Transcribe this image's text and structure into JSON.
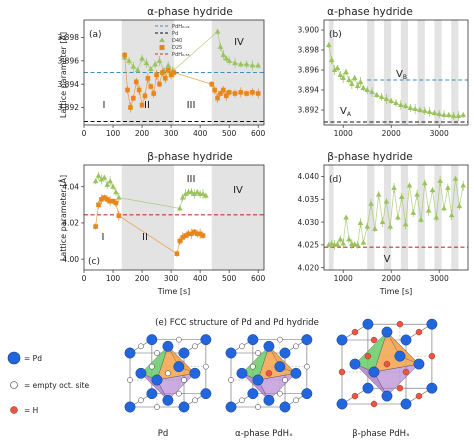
{
  "colors": {
    "pd40": "#9ac35d",
    "d25": "#e8861b",
    "pdh_ref": "#3a8fbf",
    "pd_ref": "#111111",
    "pdh_beta_ref": "#c0392b",
    "shade": "#e3e3e3",
    "pd_atom": "#2266dd",
    "h_atom": "#e85540",
    "tetra_green": "#66cc66",
    "tetra_purple": "#b07fd0",
    "tetra_orange": "#f2a24a"
  },
  "panels": {
    "a": {
      "title": "α-phase hydride",
      "label": "(a)",
      "ylabel": "Lattice parameter [Å]",
      "yticks": [
        "3.898",
        "3.896",
        "3.894",
        "3.892"
      ],
      "xticks": [
        "0",
        "100",
        "200",
        "300",
        "400",
        "500",
        "600"
      ],
      "regions": [
        "I",
        "II",
        "III",
        "IV"
      ],
      "legend": [
        "PdH₀.₀₂",
        "Pd",
        "D40",
        "D25",
        "PdH₀.₅₈"
      ]
    },
    "b": {
      "title": "α-phase hydride",
      "label": "(b)",
      "yticks": [
        "3.900",
        "3.898",
        "3.896",
        "3.894",
        "3.892"
      ],
      "xticks": [
        "1000",
        "2000",
        "3000"
      ],
      "regions": [
        "V_A",
        "V_B"
      ]
    },
    "c": {
      "title": "β-phase hydride",
      "label": "(c)",
      "ylabel": "Lattice parameter [Å]",
      "yticks": [
        "4.04",
        "4.02",
        "4.00"
      ],
      "xticks": [
        "0",
        "100",
        "200",
        "300",
        "400",
        "500",
        "600"
      ],
      "xlabel": "Time [s]",
      "regions": [
        "I",
        "II",
        "III",
        "IV"
      ]
    },
    "d": {
      "title": "β-phase hydride",
      "label": "(d)",
      "yticks": [
        "4.040",
        "4.035",
        "4.030",
        "4.025",
        "4.020"
      ],
      "xticks": [
        "1000",
        "2000",
        "3000"
      ],
      "xlabel": "Time [s]",
      "regions": [
        "V"
      ]
    }
  },
  "structure": {
    "caption": "(e)  FCC structure of Pd and Pd hydride",
    "legend": [
      "= Pd",
      "= empty oct. site",
      "= H"
    ],
    "labels": [
      "Pd",
      "α-phase PdHₓ",
      "β-phase PdHₓ"
    ]
  },
  "chart_data": [
    {
      "type": "scatter",
      "panel": "a",
      "title": "α-phase hydride",
      "ylabel": "Lattice parameter [Å]",
      "xlim": [
        0,
        620
      ],
      "ylim": [
        3.8905,
        3.8995
      ],
      "shaded_intervals": [
        [
          130,
          310
        ],
        [
          440,
          620
        ]
      ],
      "reference_lines": [
        {
          "name": "PdH₀.₀₂",
          "y": 3.895,
          "style": "dashed",
          "color": "#3a8fbf"
        },
        {
          "name": "Pd",
          "y": 3.8908,
          "style": "dashed",
          "color": "#111111"
        }
      ],
      "series": [
        {
          "name": "D40",
          "marker": "triangle",
          "color": "#9ac35d",
          "x": [
            140,
            155,
            170,
            185,
            200,
            215,
            230,
            245,
            260,
            275,
            290,
            305,
            460,
            470,
            480,
            490,
            500,
            520,
            540,
            560,
            580,
            600
          ],
          "y": [
            3.8963,
            3.896,
            3.8955,
            3.8952,
            3.8962,
            3.8958,
            3.8953,
            3.8957,
            3.896,
            3.8952,
            3.8956,
            3.8951,
            3.8985,
            3.8972,
            3.8965,
            3.8962,
            3.896,
            3.8958,
            3.8957,
            3.8957,
            3.8956,
            3.8956
          ]
        },
        {
          "name": "D25",
          "marker": "square",
          "color": "#e8861b",
          "x": [
            140,
            150,
            160,
            170,
            180,
            190,
            200,
            210,
            220,
            230,
            240,
            250,
            260,
            270,
            280,
            290,
            300,
            310,
            440,
            450,
            460,
            470,
            480,
            490,
            500,
            520,
            540,
            560,
            580,
            600
          ],
          "y": [
            3.8965,
            3.8935,
            3.892,
            3.8928,
            3.8942,
            3.8935,
            3.8922,
            3.893,
            3.8945,
            3.8938,
            3.8932,
            3.8948,
            3.894,
            3.895,
            3.8945,
            3.8952,
            3.8948,
            3.895,
            3.894,
            3.8935,
            3.8928,
            3.8932,
            3.8935,
            3.893,
            3.8933,
            3.8932,
            3.8933,
            3.8932,
            3.8933,
            3.8932
          ]
        }
      ]
    },
    {
      "type": "scatter",
      "panel": "b",
      "title": "α-phase hydride",
      "xlim": [
        600,
        3600
      ],
      "ylim": [
        3.8905,
        3.901
      ],
      "shaded_intervals": [
        [
          700,
          800
        ],
        [
          1500,
          1650
        ],
        [
          1850,
          2000
        ],
        [
          2200,
          2350
        ],
        [
          2550,
          2700
        ],
        [
          2900,
          3050
        ],
        [
          3250,
          3400
        ]
      ],
      "reference_lines": [
        {
          "y": 3.895,
          "x_from": 1500,
          "style": "dashed",
          "color": "#3a8fbf"
        },
        {
          "y": 3.8908,
          "style": "dashed",
          "color": "#111111"
        }
      ],
      "series": [
        {
          "name": "D40",
          "marker": "triangle",
          "color": "#9ac35d",
          "x": [
            700,
            760,
            820,
            880,
            940,
            1000,
            1060,
            1120,
            1180,
            1240,
            1300,
            1360,
            1420,
            1500,
            1600,
            1700,
            1800,
            1900,
            2000,
            2100,
            2200,
            2300,
            2400,
            2500,
            2600,
            2700,
            2800,
            2900,
            3000,
            3100,
            3200,
            3300,
            3400,
            3500
          ],
          "y": [
            3.8985,
            3.897,
            3.896,
            3.8962,
            3.8955,
            3.8952,
            3.8958,
            3.895,
            3.8946,
            3.8952,
            3.8944,
            3.8948,
            3.8942,
            3.894,
            3.8938,
            3.8935,
            3.8933,
            3.8931,
            3.8929,
            3.8927,
            3.8925,
            3.8924,
            3.8922,
            3.8921,
            3.892,
            3.8919,
            3.8918,
            3.8917,
            3.8916,
            3.8915,
            3.8915,
            3.8914,
            3.8914,
            3.8915
          ]
        }
      ]
    },
    {
      "type": "scatter",
      "panel": "c",
      "title": "β-phase hydride",
      "xlabel": "Time [s]",
      "ylabel": "Lattice parameter [Å]",
      "xlim": [
        0,
        620
      ],
      "ylim": [
        3.994,
        4.052
      ],
      "shaded_intervals": [
        [
          130,
          310
        ],
        [
          440,
          620
        ]
      ],
      "reference_lines": [
        {
          "name": "PdH₀.₅₈",
          "y": 4.0245,
          "style": "dashed",
          "color": "#c0392b"
        }
      ],
      "series": [
        {
          "name": "D40",
          "marker": "triangle",
          "color": "#9ac35d",
          "x": [
            40,
            50,
            60,
            70,
            80,
            90,
            100,
            110,
            120,
            330,
            340,
            350,
            360,
            370,
            380,
            390,
            400,
            410,
            420
          ],
          "y": [
            4.043,
            4.046,
            4.044,
            4.045,
            4.041,
            4.043,
            4.04,
            4.037,
            4.034,
            4.028,
            4.034,
            4.036,
            4.037,
            4.037,
            4.036,
            4.037,
            4.036,
            4.036,
            4.035
          ]
        },
        {
          "name": "D25",
          "marker": "square",
          "color": "#e8861b",
          "x": [
            40,
            50,
            60,
            70,
            80,
            90,
            100,
            110,
            120,
            320,
            330,
            340,
            350,
            360,
            370,
            380,
            390,
            400,
            410
          ],
          "y": [
            4.018,
            4.03,
            4.033,
            4.034,
            4.033,
            4.032,
            4.032,
            4.031,
            4.024,
            4.003,
            4.01,
            4.012,
            4.013,
            4.014,
            4.014,
            4.015,
            4.014,
            4.014,
            4.013
          ]
        }
      ]
    },
    {
      "type": "scatter",
      "panel": "d",
      "title": "β-phase hydride",
      "xlabel": "Time [s]",
      "xlim": [
        600,
        3600
      ],
      "ylim": [
        4.0195,
        4.0425
      ],
      "shaded_intervals": [
        [
          700,
          800
        ],
        [
          1500,
          1650
        ],
        [
          1850,
          2000
        ],
        [
          2200,
          2350
        ],
        [
          2550,
          2700
        ],
        [
          2900,
          3050
        ],
        [
          3250,
          3400
        ]
      ],
      "reference_lines": [
        {
          "y": 4.0245,
          "style": "dashed",
          "color": "#c0392b"
        }
      ],
      "series": [
        {
          "name": "D40",
          "marker": "triangle",
          "color": "#9ac35d",
          "x": [
            700,
            760,
            820,
            880,
            940,
            1000,
            1060,
            1120,
            1180,
            1240,
            1300,
            1360,
            1420,
            1500,
            1580,
            1660,
            1740,
            1820,
            1900,
            1980,
            2060,
            2140,
            2220,
            2300,
            2380,
            2460,
            2540,
            2620,
            2700,
            2780,
            2860,
            2940,
            3020,
            3100,
            3180,
            3260,
            3340,
            3420,
            3500
          ],
          "y": [
            4.025,
            4.0252,
            4.025,
            4.0251,
            4.0262,
            4.0253,
            4.031,
            4.0262,
            4.0252,
            4.0251,
            4.025,
            4.0298,
            4.0255,
            4.029,
            4.034,
            4.0285,
            4.036,
            4.03,
            4.0345,
            4.029,
            4.0375,
            4.031,
            4.0355,
            4.0295,
            4.038,
            4.032,
            4.036,
            4.0305,
            4.0385,
            4.0325,
            4.037,
            4.031,
            4.039,
            4.033,
            4.0375,
            4.0315,
            4.0395,
            4.0335,
            4.038
          ]
        }
      ]
    }
  ]
}
